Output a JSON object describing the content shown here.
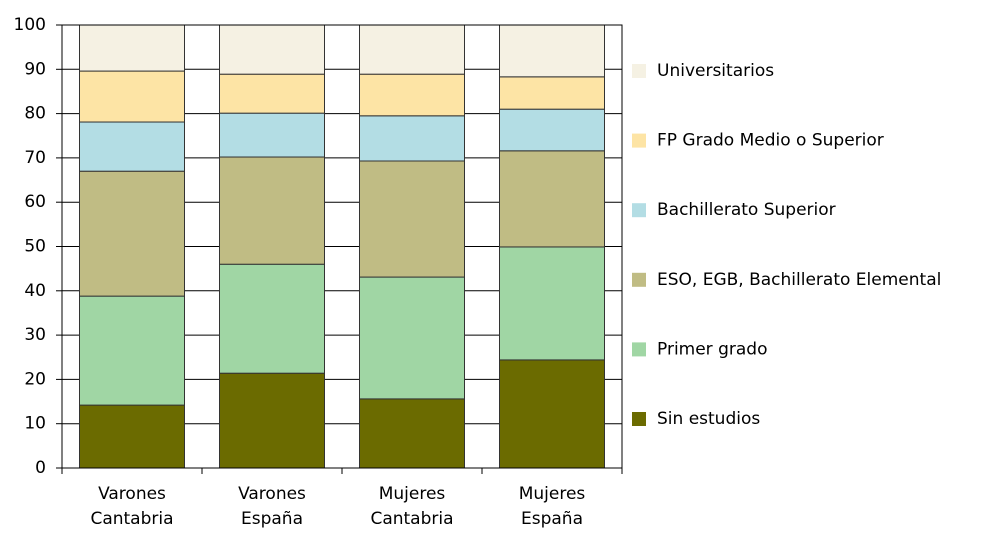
{
  "chart_data": {
    "type": "stacked_bar",
    "categories": [
      "Varones Cantabria",
      "Varones España",
      "Mujeres Cantabria",
      "Mujeres España"
    ],
    "series": [
      {
        "name": "Sin estudios",
        "color": "#6b6b00",
        "values": [
          14.2,
          21.4,
          15.6,
          24.4
        ]
      },
      {
        "name": "Primer grado",
        "color": "#a0d6a4",
        "values": [
          24.6,
          24.6,
          27.5,
          25.5
        ]
      },
      {
        "name": "ESO, EGB, Bachillerato Elemental",
        "color": "#c0bc84",
        "values": [
          28.2,
          24.2,
          26.2,
          21.7
        ]
      },
      {
        "name": "Bachillerato Superior",
        "color": "#b3dde4",
        "values": [
          11.1,
          9.9,
          10.2,
          9.4
        ]
      },
      {
        "name": "FP Grado Medio o Superior",
        "color": "#fde4a5",
        "values": [
          11.5,
          8.8,
          9.4,
          7.3
        ]
      },
      {
        "name": "Universitarios",
        "color": "#f5f1e3",
        "values": [
          10.4,
          11.1,
          11.1,
          11.7
        ]
      }
    ],
    "ylim": [
      0,
      100
    ],
    "yticks": [
      0,
      10,
      20,
      30,
      40,
      50,
      60,
      70,
      80,
      90,
      100
    ],
    "grid": true,
    "legend": "right"
  }
}
